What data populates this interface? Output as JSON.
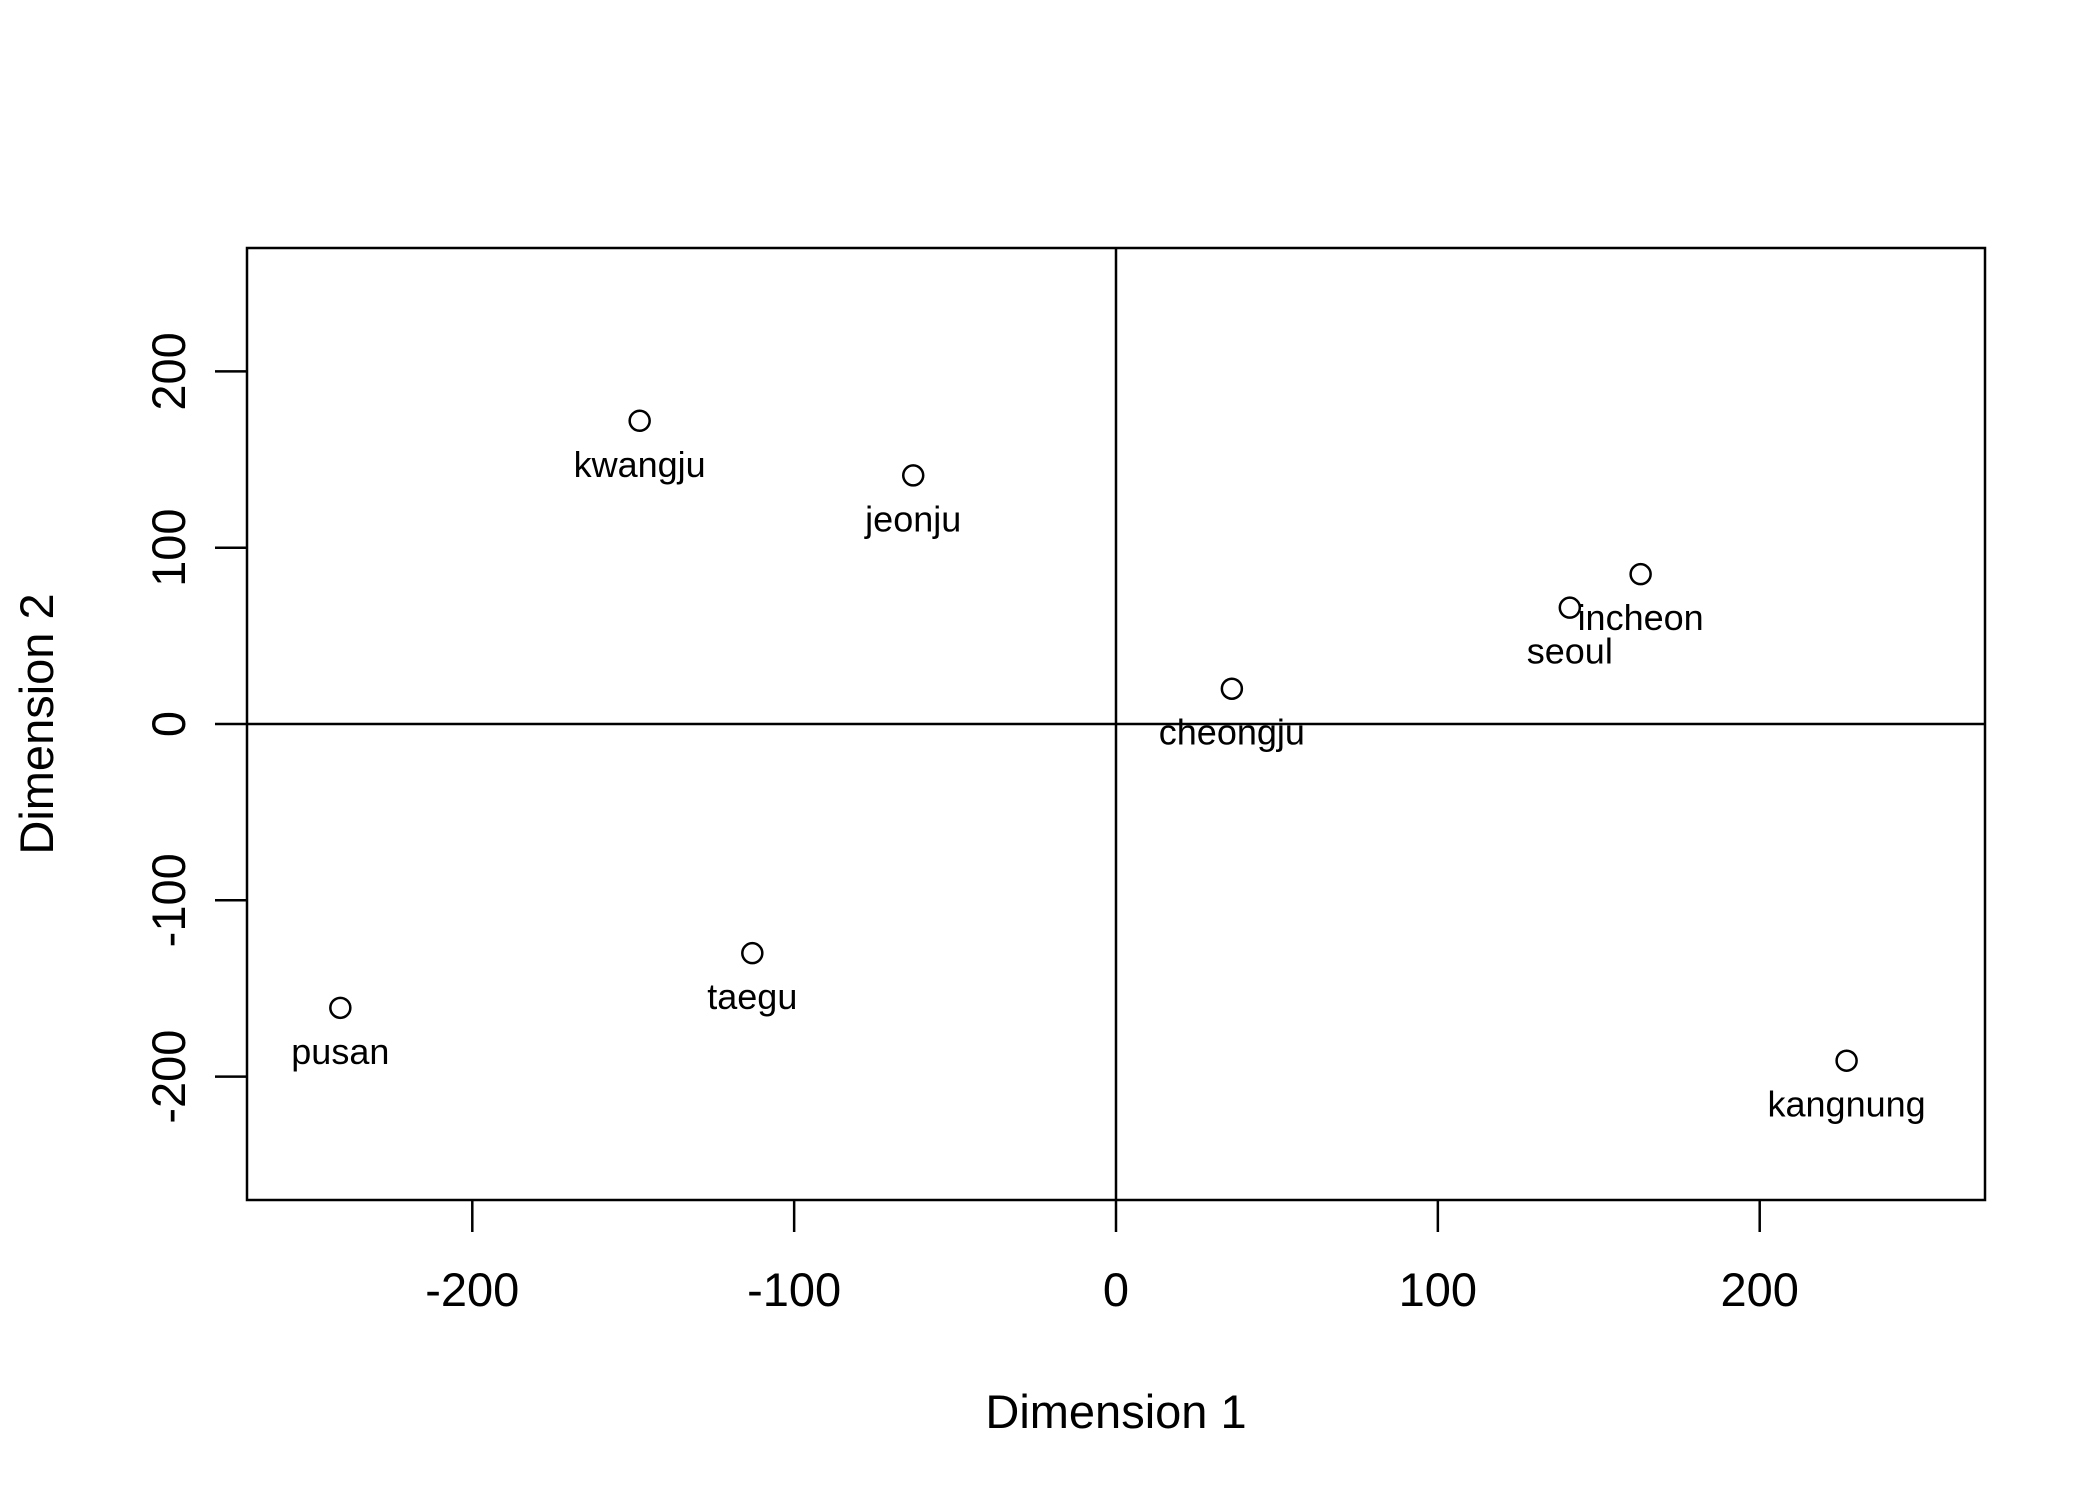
{
  "chart_data": {
    "type": "scatter",
    "xlabel": "Dimension 1",
    "ylabel": "Dimension 2",
    "xlim": [
      -270,
      270
    ],
    "ylim": [
      -270,
      270
    ],
    "xticks": [
      -200,
      -100,
      0,
      100,
      200
    ],
    "yticks": [
      -200,
      -100,
      0,
      100,
      200
    ],
    "reference_lines": {
      "x": 0,
      "y": 0
    },
    "grid": false,
    "points": [
      {
        "label": "kwangju",
        "x": -148,
        "y": 172
      },
      {
        "label": "jeonju",
        "x": -63,
        "y": 141
      },
      {
        "label": "incheon",
        "x": 163,
        "y": 85
      },
      {
        "label": "seoul",
        "x": 141,
        "y": 66
      },
      {
        "label": "cheongju",
        "x": 36,
        "y": 20
      },
      {
        "label": "taegu",
        "x": -113,
        "y": -130
      },
      {
        "label": "pusan",
        "x": -241,
        "y": -161
      },
      {
        "label": "kangnung",
        "x": 227,
        "y": -191
      }
    ]
  }
}
